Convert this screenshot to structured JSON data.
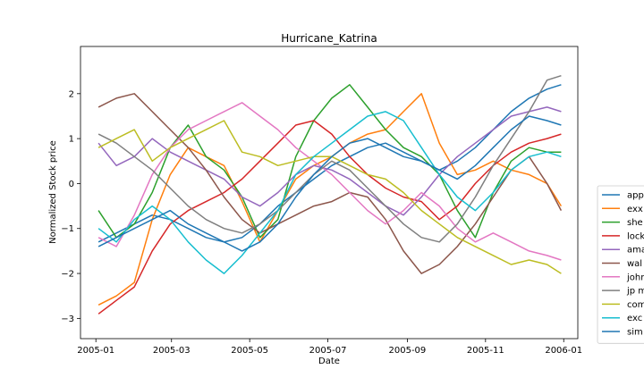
{
  "chart_data": {
    "type": "line",
    "title": "Hurricane_Katrina",
    "xlabel": "Date",
    "ylabel": "Normalized Stock price",
    "xlim": [
      "2004-12-20",
      "2006-01-12"
    ],
    "ylim": [
      -3.45,
      3.05
    ],
    "x_ticks": [
      "2005-01",
      "2005-03",
      "2005-05",
      "2005-07",
      "2005-09",
      "2005-11",
      "2006-01"
    ],
    "y_ticks": [
      -3,
      -2,
      -1,
      0,
      1,
      2
    ],
    "grid": false,
    "legend_position": "right, outside plot (clipped)",
    "x_dates": [
      "2005-01-03",
      "2005-01-17",
      "2005-01-31",
      "2005-02-14",
      "2005-02-28",
      "2005-03-14",
      "2005-03-28",
      "2005-04-11",
      "2005-04-25",
      "2005-05-09",
      "2005-05-23",
      "2005-06-06",
      "2005-06-20",
      "2005-07-04",
      "2005-07-18",
      "2005-08-01",
      "2005-08-15",
      "2005-08-29",
      "2005-09-12",
      "2005-09-26",
      "2005-10-10",
      "2005-10-24",
      "2005-11-07",
      "2005-11-21",
      "2005-12-05",
      "2005-12-19",
      "2005-12-30"
    ],
    "series": [
      {
        "name": "app",
        "color": "#1f77b4",
        "values": [
          -1.3,
          -1.1,
          -0.9,
          -0.7,
          -0.8,
          -1.0,
          -1.2,
          -1.3,
          -1.2,
          -0.9,
          -0.5,
          -0.2,
          0.1,
          0.4,
          0.6,
          0.8,
          0.9,
          0.7,
          0.5,
          0.3,
          0.5,
          0.8,
          1.2,
          1.6,
          1.9,
          2.1,
          2.2
        ]
      },
      {
        "name": "exx",
        "color": "#ff7f0e",
        "values": [
          -2.7,
          -2.5,
          -2.2,
          -0.8,
          0.2,
          0.8,
          0.6,
          0.4,
          -0.4,
          -1.3,
          -0.6,
          0.1,
          0.4,
          0.6,
          0.9,
          1.1,
          1.2,
          1.6,
          2.0,
          0.9,
          0.2,
          0.3,
          0.5,
          0.3,
          0.2,
          0.0,
          -0.5
        ]
      },
      {
        "name": "she",
        "color": "#2ca02c",
        "values": [
          -0.6,
          -1.2,
          -0.9,
          -0.2,
          0.8,
          1.3,
          0.6,
          0.3,
          -0.3,
          -1.2,
          -0.8,
          0.6,
          1.4,
          1.9,
          2.2,
          1.7,
          1.2,
          0.8,
          0.6,
          0.2,
          -0.6,
          -1.2,
          -0.2,
          0.5,
          0.8,
          0.7,
          0.7
        ]
      },
      {
        "name": "lock",
        "color": "#d62728",
        "values": [
          -2.9,
          -2.6,
          -2.3,
          -1.5,
          -0.9,
          -0.6,
          -0.4,
          -0.2,
          0.1,
          0.5,
          0.9,
          1.3,
          1.4,
          1.1,
          0.6,
          0.2,
          -0.1,
          -0.3,
          -0.4,
          -0.8,
          -0.5,
          0.0,
          0.4,
          0.7,
          0.9,
          1.0,
          1.1
        ]
      },
      {
        "name": "ama",
        "color": "#9467bd",
        "values": [
          0.9,
          0.4,
          0.6,
          1.0,
          0.7,
          0.5,
          0.3,
          0.1,
          -0.3,
          -0.5,
          -0.2,
          0.2,
          0.4,
          0.3,
          0.1,
          -0.2,
          -0.5,
          -0.7,
          -0.3,
          0.2,
          0.6,
          0.9,
          1.2,
          1.5,
          1.6,
          1.7,
          1.6
        ]
      },
      {
        "name": "wal",
        "color": "#8c564b",
        "values": [
          1.7,
          1.9,
          2.0,
          1.6,
          1.2,
          0.8,
          0.3,
          -0.3,
          -0.8,
          -1.1,
          -0.9,
          -0.7,
          -0.5,
          -0.4,
          -0.2,
          -0.3,
          -0.8,
          -1.5,
          -2.0,
          -1.8,
          -1.4,
          -0.9,
          -0.3,
          0.3,
          0.6,
          0.0,
          -0.6
        ]
      },
      {
        "name": "johr",
        "color": "#e377c2",
        "values": [
          -1.2,
          -1.4,
          -0.7,
          0.2,
          0.8,
          1.2,
          1.4,
          1.6,
          1.8,
          1.5,
          1.2,
          0.8,
          0.5,
          0.2,
          -0.2,
          -0.6,
          -0.9,
          -0.6,
          -0.2,
          -0.5,
          -1.0,
          -1.3,
          -1.1,
          -1.3,
          -1.5,
          -1.6,
          -1.7
        ]
      },
      {
        "name": "jp m",
        "color": "#7f7f7f",
        "values": [
          1.1,
          0.9,
          0.6,
          0.3,
          -0.1,
          -0.5,
          -0.8,
          -1.0,
          -1.1,
          -0.9,
          -0.6,
          -0.2,
          0.2,
          0.5,
          0.3,
          -0.1,
          -0.5,
          -0.9,
          -1.2,
          -1.3,
          -0.9,
          -0.3,
          0.4,
          1.0,
          1.6,
          2.3,
          2.4
        ]
      },
      {
        "name": "com",
        "color": "#bcbd22",
        "values": [
          0.8,
          1.0,
          1.2,
          0.5,
          0.8,
          1.0,
          1.2,
          1.4,
          0.7,
          0.6,
          0.4,
          0.5,
          0.6,
          0.6,
          0.4,
          0.2,
          0.1,
          -0.2,
          -0.6,
          -0.9,
          -1.2,
          -1.4,
          -1.6,
          -1.8,
          -1.7,
          -1.8,
          -2.0
        ]
      },
      {
        "name": "exc",
        "color": "#17becf",
        "values": [
          -1.0,
          -1.3,
          -0.8,
          -0.5,
          -0.8,
          -1.3,
          -1.7,
          -2.0,
          -1.6,
          -1.1,
          -0.6,
          0.2,
          0.6,
          0.9,
          1.2,
          1.5,
          1.6,
          1.4,
          0.8,
          0.2,
          -0.3,
          -0.6,
          -0.2,
          0.3,
          0.6,
          0.7,
          0.6
        ]
      },
      {
        "name": "sim",
        "color": "#1f77b4",
        "values": [
          -1.4,
          -1.2,
          -1.0,
          -0.8,
          -0.6,
          -0.9,
          -1.1,
          -1.3,
          -1.5,
          -1.3,
          -0.9,
          -0.3,
          0.2,
          0.6,
          0.9,
          1.0,
          0.8,
          0.6,
          0.5,
          0.3,
          0.1,
          0.4,
          0.8,
          1.2,
          1.5,
          1.4,
          1.3
        ]
      }
    ]
  }
}
